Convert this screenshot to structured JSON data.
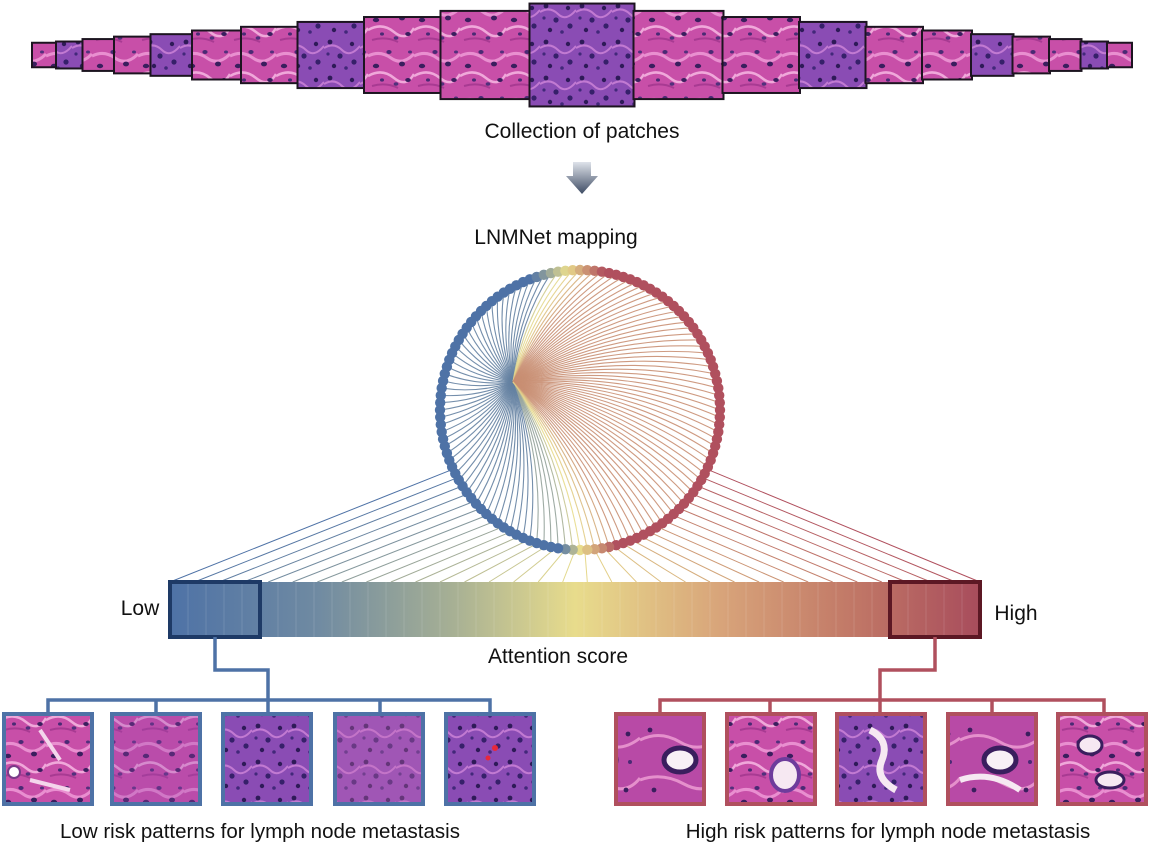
{
  "labels": {
    "collection": "Collection of patches",
    "mapping": "LNMNet mapping",
    "low": "Low",
    "high": "High",
    "attention": "Attention score",
    "low_patterns": "Low risk patterns for lymph node metastasis",
    "high_patterns": "High risk patterns for lymph node metastasis"
  },
  "colors": {
    "low_blue": "#4e72a6",
    "mid_yellow": "#e8dc8c",
    "high_red": "#b0505e",
    "low_box": "#1e3a66",
    "high_box": "#5c1824",
    "tissue_pink": "#c84fa8",
    "tissue_purple": "#6e3c9c",
    "tissue_dark": "#3a1e5e"
  },
  "icons": [
    "down-arrow-icon"
  ]
}
